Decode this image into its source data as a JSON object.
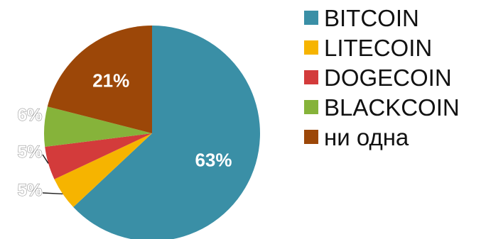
{
  "chart_data": {
    "type": "pie",
    "title": "",
    "categories": [
      "BITCOIN",
      "LITECOIN",
      "DOGECOIN",
      "BLACKCOIN",
      "ни одна"
    ],
    "values": [
      63,
      5,
      5,
      6,
      21
    ],
    "data_labels": [
      "63%",
      "5%",
      "5%",
      "6%",
      "21%"
    ],
    "colors": [
      "#3a8fa6",
      "#f6b400",
      "#d33b3b",
      "#86b33a",
      "#9c4708"
    ],
    "label_colors": [
      "#ffffff",
      "#ffffff",
      "#ffffff",
      "#ffffff",
      "#ffffff"
    ],
    "start_angle_deg": 0,
    "direction": "clockwise",
    "legend": "right"
  }
}
